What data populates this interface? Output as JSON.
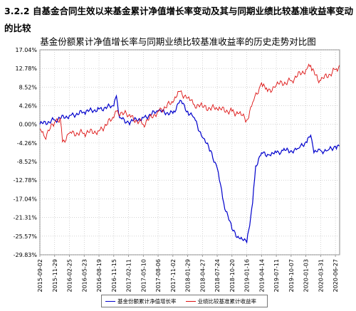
{
  "section_heading": "3.2.2 自基金合同生效以来基金累计净值增长率变动及其与同期业绩比较基准收益率变动的比较",
  "chart_data": {
    "type": "line",
    "title": "基金份额累计净值增长率与同期业绩比较基准收益率的历史走势对比图",
    "ylim": [
      -29.83,
      17.04
    ],
    "y_ticks": [
      "17.04%",
      "12.78%",
      "8.52%",
      "4.26%",
      "0.00%",
      "-4.26%",
      "-8.52%",
      "-12.78%",
      "-17.04%",
      "-21.31%",
      "-25.57%",
      "-29.83%"
    ],
    "x_ticks": [
      "2015-09-02",
      "2015-11-29",
      "2016-02-25",
      "2016-05-23",
      "2016-08-19",
      "2016-11-15",
      "2017-02-11",
      "2017-05-10",
      "2017-08-06",
      "2017-11-02",
      "2018-01-29",
      "2018-04-27",
      "2018-07-24",
      "2018-10-20",
      "2019-01-16",
      "2019-04-14",
      "2019-07-11",
      "2019-10-07",
      "2020-01-03",
      "2020-03-31",
      "2020-06-27"
    ],
    "grid": true,
    "legend_position": "bottom",
    "series": [
      {
        "name": "基金份额累计净值增长率",
        "color": "#0000cc",
        "x": [
          "2015-09-02",
          "2015-11-29",
          "2016-02-25",
          "2016-05-23",
          "2016-08-19",
          "2016-11-15",
          "2016-12-01",
          "2016-12-20",
          "2017-02-11",
          "2017-05-10",
          "2017-08-06",
          "2017-11-02",
          "2017-12-15",
          "2018-01-29",
          "2018-03-10",
          "2018-04-27",
          "2018-06-15",
          "2018-07-24",
          "2018-09-01",
          "2018-10-20",
          "2018-12-01",
          "2019-01-16",
          "2019-02-20",
          "2019-03-10",
          "2019-04-14",
          "2019-06-01",
          "2019-07-11",
          "2019-08-20",
          "2019-10-07",
          "2019-11-20",
          "2020-01-03",
          "2020-02-01",
          "2020-02-20",
          "2020-03-31",
          "2020-05-10",
          "2020-06-27",
          "2020-07-20"
        ],
        "values": [
          0.0,
          1.0,
          2.0,
          2.8,
          3.5,
          4.2,
          6.5,
          1.5,
          0.5,
          1.5,
          3.0,
          2.5,
          5.5,
          3.0,
          1.5,
          -3.0,
          -6.0,
          -10.0,
          -18.0,
          -24.0,
          -26.0,
          -27.0,
          -18.0,
          -9.5,
          -6.5,
          -7.0,
          -6.5,
          -6.0,
          -6.0,
          -5.5,
          -4.0,
          -2.5,
          -6.5,
          -6.0,
          -6.0,
          -5.0,
          -5.0
        ]
      },
      {
        "name": "业绩比较基准累计收益率",
        "color": "#dd1111",
        "x": [
          "2015-09-02",
          "2015-10-01",
          "2015-11-29",
          "2016-01-01",
          "2016-01-15",
          "2016-02-25",
          "2016-05-23",
          "2016-08-19",
          "2016-11-15",
          "2016-12-01",
          "2017-02-11",
          "2017-05-10",
          "2017-08-06",
          "2017-11-02",
          "2017-12-15",
          "2018-01-29",
          "2018-03-10",
          "2018-04-27",
          "2018-07-24",
          "2018-10-20",
          "2018-12-01",
          "2019-01-16",
          "2019-02-20",
          "2019-04-14",
          "2019-05-20",
          "2019-07-11",
          "2019-10-07",
          "2020-01-03",
          "2020-02-01",
          "2020-03-20",
          "2020-03-31",
          "2020-06-27",
          "2020-07-20"
        ],
        "values": [
          -1.0,
          -3.0,
          0.5,
          1.5,
          -4.0,
          -2.0,
          -2.0,
          -1.5,
          1.5,
          3.0,
          2.0,
          0.0,
          3.0,
          5.0,
          7.5,
          6.0,
          4.5,
          4.0,
          3.5,
          3.0,
          2.5,
          1.0,
          5.0,
          9.5,
          7.5,
          9.0,
          10.0,
          12.5,
          13.5,
          9.5,
          10.0,
          12.5,
          13.5
        ]
      }
    ]
  }
}
